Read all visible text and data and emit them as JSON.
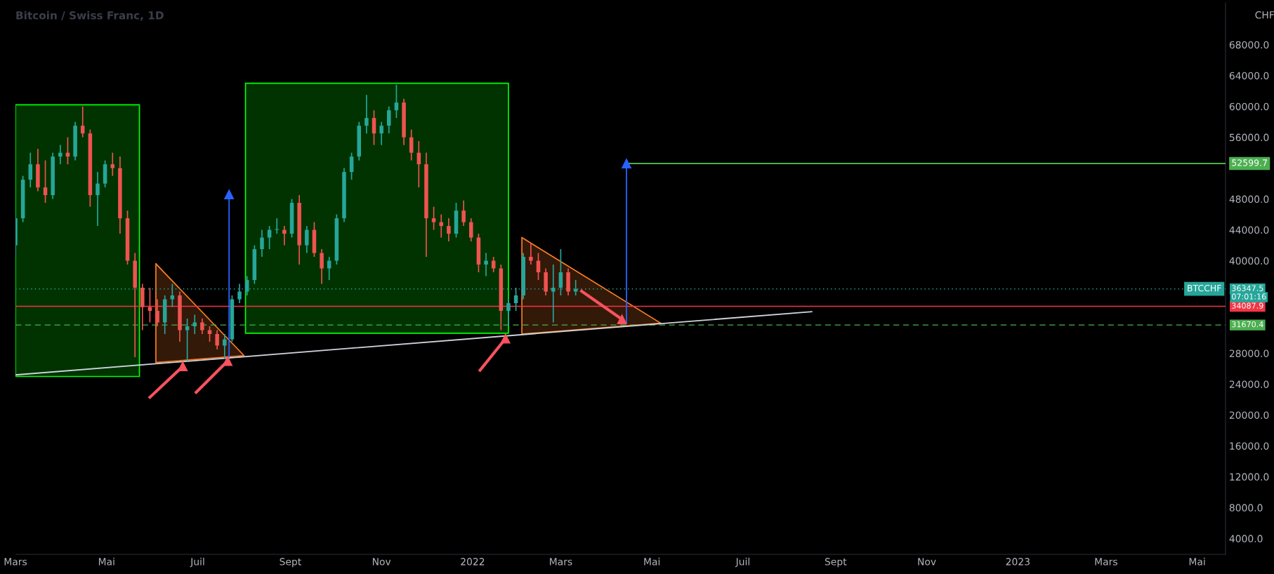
{
  "chart_data": {
    "type": "candlestick",
    "title": "Bitcoin / Swiss Franc, 1D",
    "ylabel": "CHF",
    "x": [
      "2021-03-01",
      "2021-03-06",
      "2021-03-11",
      "2021-03-16",
      "2021-03-21",
      "2021-03-26",
      "2021-03-31",
      "2021-04-05",
      "2021-04-10",
      "2021-04-15",
      "2021-04-20",
      "2021-04-25",
      "2021-04-30",
      "2021-05-05",
      "2021-05-10",
      "2021-05-15",
      "2021-05-20",
      "2021-05-25",
      "2021-05-30",
      "2021-06-04",
      "2021-06-09",
      "2021-06-14",
      "2021-06-19",
      "2021-06-24",
      "2021-06-29",
      "2021-07-04",
      "2021-07-09",
      "2021-07-14",
      "2021-07-19",
      "2021-07-24",
      "2021-07-29",
      "2021-08-03",
      "2021-08-08",
      "2021-08-13",
      "2021-08-18",
      "2021-08-23",
      "2021-08-28",
      "2021-09-02",
      "2021-09-07",
      "2021-09-12",
      "2021-09-17",
      "2021-09-22",
      "2021-09-27",
      "2021-10-02",
      "2021-10-07",
      "2021-10-12",
      "2021-10-17",
      "2021-10-22",
      "2021-10-27",
      "2021-11-01",
      "2021-11-06",
      "2021-11-11",
      "2021-11-16",
      "2021-11-21",
      "2021-11-26",
      "2021-12-01",
      "2021-12-06",
      "2021-12-11",
      "2021-12-16",
      "2021-12-21",
      "2021-12-26",
      "2021-12-31",
      "2022-01-05",
      "2022-01-10",
      "2022-01-15",
      "2022-01-20",
      "2022-01-25",
      "2022-01-30",
      "2022-02-04",
      "2022-02-09",
      "2022-02-14",
      "2022-02-19",
      "2022-02-24",
      "2022-03-01",
      "2022-03-06",
      "2022-03-11"
    ],
    "ohlc": [
      [
        42000,
        46000,
        40500,
        45500
      ],
      [
        45500,
        51000,
        45000,
        50500
      ],
      [
        50500,
        54000,
        49500,
        52500
      ],
      [
        52500,
        54500,
        49000,
        49500
      ],
      [
        49500,
        53000,
        47500,
        48500
      ],
      [
        48500,
        54000,
        48000,
        53500
      ],
      [
        53500,
        55000,
        52500,
        54000
      ],
      [
        54000,
        56000,
        52500,
        53500
      ],
      [
        53500,
        58000,
        53000,
        57500
      ],
      [
        57500,
        60000,
        56000,
        56500
      ],
      [
        56500,
        57000,
        47000,
        48500
      ],
      [
        48500,
        51500,
        44500,
        50000
      ],
      [
        50000,
        53000,
        49500,
        52500
      ],
      [
        52500,
        54000,
        51000,
        52000
      ],
      [
        52000,
        53500,
        43500,
        45500
      ],
      [
        45500,
        46500,
        39500,
        40000
      ],
      [
        40000,
        41000,
        27500,
        36500
      ],
      [
        36500,
        37000,
        31000,
        34000
      ],
      [
        34000,
        36500,
        32000,
        33500
      ],
      [
        33500,
        35000,
        31500,
        32000
      ],
      [
        32000,
        35500,
        30500,
        35000
      ],
      [
        35000,
        37000,
        34000,
        35500
      ],
      [
        35500,
        36000,
        29500,
        31000
      ],
      [
        31000,
        32500,
        27000,
        31500
      ],
      [
        31500,
        33000,
        30500,
        32000
      ],
      [
        32000,
        32500,
        30500,
        31000
      ],
      [
        31000,
        31500,
        29500,
        30500
      ],
      [
        30500,
        31000,
        28500,
        29000
      ],
      [
        29000,
        30500,
        27300,
        29800
      ],
      [
        29800,
        35500,
        29500,
        35000
      ],
      [
        35000,
        37000,
        34500,
        36000
      ],
      [
        36000,
        38000,
        35500,
        37500
      ],
      [
        37500,
        42000,
        37000,
        41500
      ],
      [
        41500,
        44000,
        40500,
        43000
      ],
      [
        43000,
        44500,
        41500,
        44000
      ],
      [
        44000,
        45500,
        43500,
        44100
      ],
      [
        44000,
        44500,
        42000,
        43500
      ],
      [
        43500,
        48000,
        43000,
        47500
      ],
      [
        47500,
        48500,
        39500,
        42000
      ],
      [
        42000,
        44500,
        41000,
        44000
      ],
      [
        44000,
        45000,
        40500,
        41000
      ],
      [
        41000,
        41500,
        37000,
        39000
      ],
      [
        39000,
        40500,
        37500,
        40000
      ],
      [
        40000,
        46000,
        39500,
        45500
      ],
      [
        45500,
        52000,
        45000,
        51500
      ],
      [
        51500,
        54000,
        50500,
        53500
      ],
      [
        53500,
        58000,
        53000,
        57500
      ],
      [
        57500,
        61500,
        56500,
        58500
      ],
      [
        58500,
        59500,
        55000,
        56500
      ],
      [
        56500,
        58000,
        55000,
        57500
      ],
      [
        57500,
        60000,
        56500,
        59500
      ],
      [
        59500,
        62800,
        58500,
        60500
      ],
      [
        60500,
        61000,
        55000,
        56000
      ],
      [
        56000,
        57000,
        53000,
        54000
      ],
      [
        54000,
        55500,
        49500,
        52500
      ],
      [
        52500,
        54000,
        40500,
        45500
      ],
      [
        45500,
        47000,
        44000,
        45000
      ],
      [
        45000,
        46000,
        43000,
        44500
      ],
      [
        44500,
        45500,
        42500,
        43500
      ],
      [
        43500,
        47500,
        43000,
        46500
      ],
      [
        46500,
        47800,
        44500,
        45000
      ],
      [
        45000,
        45500,
        42500,
        43000
      ],
      [
        43000,
        43500,
        38500,
        39500
      ],
      [
        39500,
        41000,
        38000,
        40000
      ],
      [
        40000,
        40500,
        38500,
        39000
      ],
      [
        39000,
        39500,
        31000,
        33500
      ],
      [
        33500,
        35000,
        31500,
        34500
      ],
      [
        34500,
        36500,
        33500,
        35500
      ],
      [
        35500,
        41000,
        35000,
        40500
      ],
      [
        40500,
        42300,
        39500,
        40000
      ],
      [
        40000,
        41000,
        37500,
        38500
      ],
      [
        38500,
        39000,
        35500,
        36000
      ],
      [
        36000,
        39500,
        32000,
        36500
      ],
      [
        36500,
        41500,
        35500,
        38500
      ],
      [
        38500,
        39000,
        35500,
        36000
      ],
      [
        36000,
        37500,
        35500,
        36347.5
      ]
    ],
    "colors": [
      "#26a69a",
      "#26a69a",
      "#26a69a",
      "#ef5350",
      "#ef5350",
      "#26a69a",
      "#26a69a",
      "#ef5350",
      "#26a69a",
      "#ef5350",
      "#ef5350",
      "#26a69a",
      "#26a69a",
      "#ef5350",
      "#ef5350",
      "#ef5350",
      "#ef5350",
      "#ef5350",
      "#ef5350",
      "#ef5350",
      "#26a69a",
      "#26a69a",
      "#ef5350",
      "#26a69a",
      "#26a69a",
      "#ef5350",
      "#ef5350",
      "#ef5350",
      "#26a69a",
      "#26a69a",
      "#26a69a",
      "#26a69a",
      "#26a69a",
      "#26a69a",
      "#26a69a",
      "#26a69a",
      "#ef5350",
      "#26a69a",
      "#ef5350",
      "#26a69a",
      "#ef5350",
      "#ef5350",
      "#26a69a",
      "#26a69a",
      "#26a69a",
      "#26a69a",
      "#26a69a",
      "#26a69a",
      "#ef5350",
      "#26a69a",
      "#26a69a",
      "#26a69a",
      "#ef5350",
      "#ef5350",
      "#ef5350",
      "#ef5350",
      "#ef5350",
      "#ef5350",
      "#ef5350",
      "#26a69a",
      "#ef5350",
      "#ef5350",
      "#ef5350",
      "#26a69a",
      "#ef5350",
      "#ef5350",
      "#26a69a",
      "#26a69a",
      "#26a69a",
      "#ef5350",
      "#ef5350",
      "#ef5350",
      "#26a69a",
      "#26a69a",
      "#ef5350",
      "#26a69a"
    ],
    "series": [
      {
        "type": "area",
        "color": "#00ff00",
        "x": [
          "2021-03-01",
          "2021-05-23",
          "2021-05-23",
          "2021-03-01",
          "2021-03-01"
        ],
        "values": [
          60200,
          60200,
          25000,
          25000,
          60200
        ]
      },
      {
        "type": "area",
        "color": "#00ff00",
        "x": [
          "2021-08-02",
          "2022-01-25",
          "2022-01-25",
          "2021-08-02",
          "2021-08-02"
        ],
        "values": [
          63000,
          63000,
          30600,
          30600,
          63000
        ]
      },
      {
        "type": "area",
        "color": "#ff7f27",
        "x": [
          "2021-06-03",
          "2021-08-01",
          "2021-06-03",
          "2021-06-03"
        ],
        "values": [
          39600,
          27700,
          26800,
          39600
        ]
      },
      {
        "type": "area",
        "color": "#ff7f27",
        "x": [
          "2022-02-03",
          "2022-05-07",
          "2022-02-03",
          "2022-02-03"
        ],
        "values": [
          43000,
          31900,
          30500,
          43000
        ]
      },
      {
        "type": "line",
        "color": "#d1d4dc",
        "x": [
          "2021-03-01",
          "2022-08-16"
        ],
        "values": [
          25200,
          33400
        ]
      },
      {
        "type": "line",
        "name": "52599.7",
        "color": "#4caf50",
        "x": [
          "2022-04-14",
          "2023-05-20"
        ],
        "values": [
          52599.7,
          52599.7
        ]
      },
      {
        "type": "line",
        "color": "#2962ff",
        "marker": "triangle",
        "x": [
          "2021-07-22",
          "2021-07-22"
        ],
        "values": [
          27550,
          48600
        ]
      },
      {
        "type": "line",
        "color": "#2962ff",
        "marker": "triangle",
        "x": [
          "2022-04-14",
          "2022-04-14"
        ],
        "values": [
          31900,
          52599.7
        ]
      },
      {
        "type": "line",
        "color": "#f7525f",
        "marker": "triangle",
        "x": [
          "2021-05-30",
          "2021-06-21"
        ],
        "values": [
          22300,
          26300
        ]
      },
      {
        "type": "line",
        "color": "#f7525f",
        "marker": "triangle",
        "x": [
          "2021-06-30",
          "2021-07-21"
        ],
        "values": [
          22950,
          27000
        ]
      },
      {
        "type": "line",
        "color": "#f7525f",
        "marker": "triangle",
        "x": [
          "2022-01-06",
          "2022-01-23"
        ],
        "values": [
          25800,
          29900
        ]
      },
      {
        "type": "line",
        "color": "#f7525f",
        "marker": "triangle",
        "x": [
          "2022-03-15",
          "2022-04-11"
        ],
        "values": [
          36050,
          32400
        ]
      }
    ],
    "ref_lines": [
      {
        "axis": "y",
        "value": 36347.5,
        "label": "36347.5",
        "color": "#26a69a",
        "line_style": "dotted"
      },
      {
        "axis": "y",
        "value": 34087.9,
        "label": "34087.9",
        "color": "#f23645",
        "line_style": "solid"
      },
      {
        "axis": "y",
        "value": 31670.4,
        "label": "31670.4",
        "color": "#4caf50",
        "line_style": "dashed"
      }
    ],
    "annotations": [
      {
        "text": "BTCCHF",
        "x": "2023-05-20",
        "y": 36347.5
      },
      "07:01:16"
    ],
    "xlim": [
      "2021-03-01",
      "2023-05-20"
    ],
    "xticks": [
      {
        "value": "2021-03-01",
        "label": "Mars"
      },
      {
        "value": "2021-05-01",
        "label": "Mai"
      },
      {
        "value": "2021-07-01",
        "label": "Juil"
      },
      {
        "value": "2021-09-01",
        "label": "Sept"
      },
      {
        "value": "2021-11-01",
        "label": "Nov"
      },
      {
        "value": "2022-01-01",
        "label": "2022"
      },
      {
        "value": "2022-03-01",
        "label": "Mars"
      },
      {
        "value": "2022-05-01",
        "label": "Mai"
      },
      {
        "value": "2022-07-01",
        "label": "Juil"
      },
      {
        "value": "2022-09-01",
        "label": "Sept"
      },
      {
        "value": "2022-11-01",
        "label": "Nov"
      },
      {
        "value": "2023-01-01",
        "label": "2023"
      },
      {
        "value": "2023-03-01",
        "label": "Mars"
      },
      {
        "value": "2023-05-01",
        "label": "Mai"
      }
    ],
    "ylim": [
      1940,
      73430
    ],
    "yticks": [
      {
        "value": 4000,
        "label": "4000.0"
      },
      {
        "value": 8000,
        "label": "8000.0"
      },
      {
        "value": 12000,
        "label": "12000.0"
      },
      {
        "value": 16000,
        "label": "16000.0"
      },
      {
        "value": 20000,
        "label": "20000.0"
      },
      {
        "value": 24000,
        "label": "24000.0"
      },
      {
        "value": 28000,
        "label": "28000.0"
      },
      {
        "value": 40000,
        "label": "40000.0"
      },
      {
        "value": 44000,
        "label": "44000.0"
      },
      {
        "value": 48000,
        "label": "48000.0"
      },
      {
        "value": 56000,
        "label": "56000.0"
      },
      {
        "value": 60000,
        "label": "60000.0"
      },
      {
        "value": 64000,
        "label": "64000.0"
      },
      {
        "value": 68000,
        "label": "68000.0"
      }
    ],
    "legend": false
  }
}
